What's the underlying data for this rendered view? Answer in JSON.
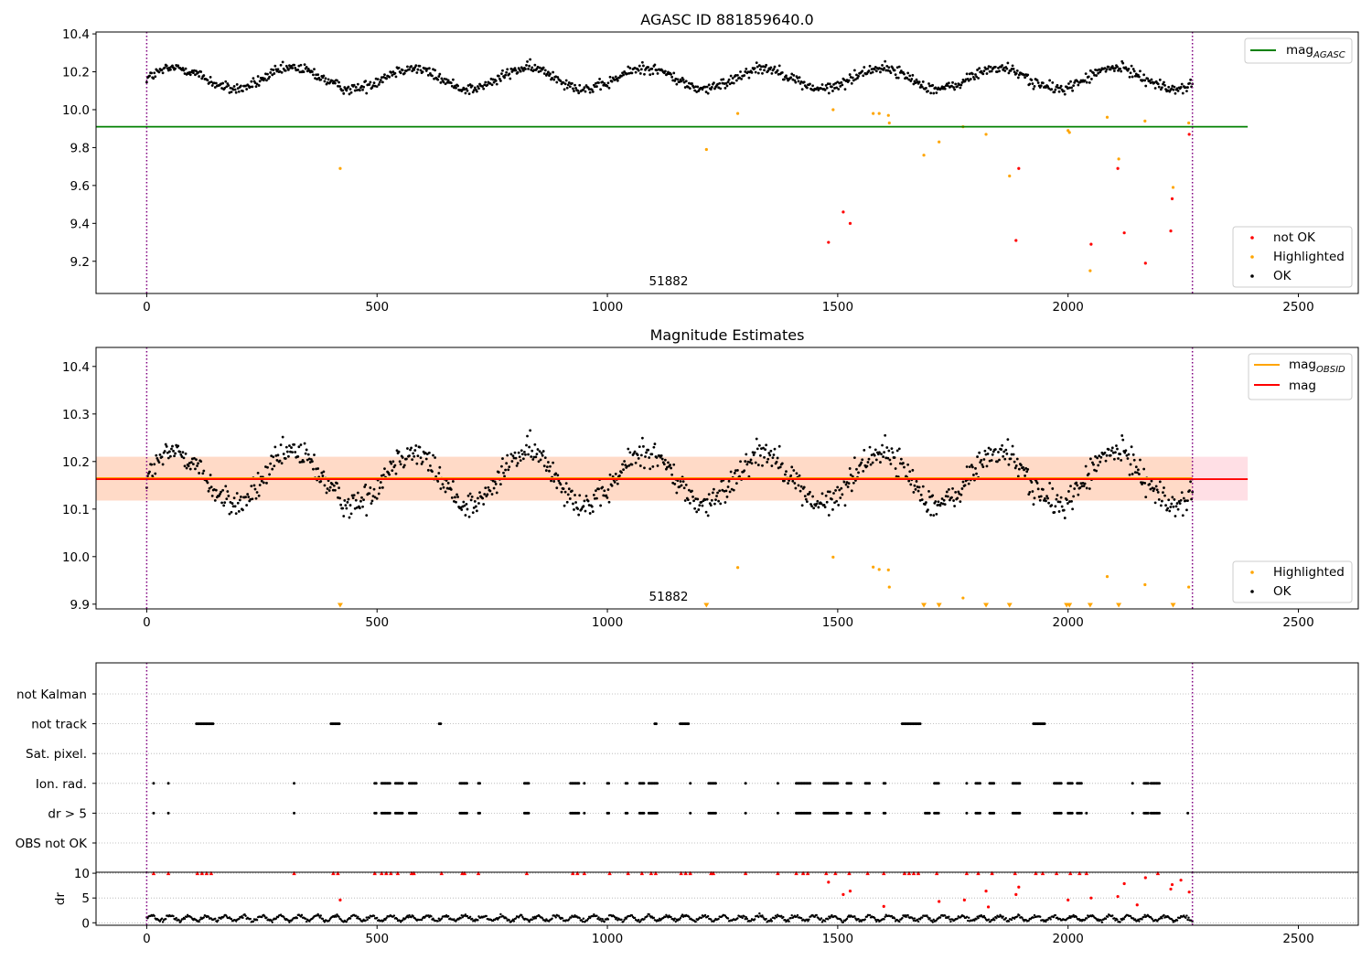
{
  "chart_data": [
    {
      "type": "scatter",
      "title": "AGASC ID 881859640.0",
      "xlim": [
        -110,
        2630
      ],
      "ylim": [
        9.03,
        10.41
      ],
      "xticks": [
        0,
        500,
        1000,
        1500,
        2000,
        2500
      ],
      "yticks": [
        9.2,
        9.4,
        9.6,
        9.8,
        10.0,
        10.2,
        10.4
      ],
      "vlines": [
        0,
        2270
      ],
      "annotation": {
        "text": "51882",
        "x": 1135,
        "y": 9.08
      },
      "hline": {
        "label": "mag",
        "sub": "AGASC",
        "value": 9.91,
        "xrange": [
          -110,
          2390
        ],
        "color": "#008000"
      },
      "legend": {
        "upper": [
          {
            "label": "mag",
            "sub": "AGASC",
            "color": "#008000",
            "kind": "line"
          }
        ],
        "lower": [
          {
            "label": "not OK",
            "color": "#ff0000",
            "kind": "dot"
          },
          {
            "label": "Highlighted",
            "color": "#ffa500",
            "kind": "dot"
          },
          {
            "label": "OK",
            "color": "#000000",
            "kind": "dot"
          }
        ]
      },
      "series": [
        {
          "name": "not OK",
          "color": "#ff0000",
          "x": [
            1480,
            1512,
            1527,
            1887,
            1893,
            2050,
            2108,
            2122,
            2168,
            2223,
            2226,
            2263
          ],
          "y": [
            9.3,
            9.46,
            9.4,
            9.31,
            9.69,
            9.29,
            9.69,
            9.35,
            9.19,
            9.36,
            9.53,
            9.87
          ]
        },
        {
          "name": "Highlighted",
          "color": "#ffa500",
          "x": [
            420,
            1215,
            1283,
            1490,
            1577,
            1590,
            1610,
            1612,
            1687,
            1720,
            1772,
            1822,
            1873,
            2000,
            2003,
            2048,
            2085,
            2110,
            2167,
            2228,
            2262
          ],
          "y": [
            9.69,
            9.79,
            9.98,
            10.0,
            9.98,
            9.98,
            9.97,
            9.93,
            9.76,
            9.83,
            9.91,
            9.87,
            9.65,
            9.89,
            9.88,
            9.15,
            9.96,
            9.74,
            9.94,
            9.59,
            9.93
          ]
        }
      ],
      "ok_series": {
        "name": "OK",
        "color": "#000000",
        "x_start": 0,
        "x_end": 2270,
        "count": 1100,
        "base": 10.165,
        "amplitude": 0.055,
        "period": 255,
        "phase": 0,
        "noise": 0.03
      }
    },
    {
      "type": "scatter",
      "title": "Magnitude Estimates",
      "xlim": [
        -110,
        2630
      ],
      "ylim": [
        9.89,
        10.44
      ],
      "xticks": [
        0,
        500,
        1000,
        1500,
        2000,
        2500
      ],
      "yticks": [
        9.9,
        10.0,
        10.1,
        10.2,
        10.3,
        10.4
      ],
      "vlines": [
        0,
        2270
      ],
      "annotation": {
        "text": "51882",
        "x": 1135,
        "y": 9.915
      },
      "band_outer": {
        "range": [
          10.118,
          10.21
        ],
        "xrange": [
          -110,
          2390
        ],
        "color": "#ffc0cb"
      },
      "band_inner": {
        "range": [
          10.118,
          10.21
        ],
        "xrange": [
          -110,
          2270
        ],
        "color": "#ffd7b3"
      },
      "mag_obsid": {
        "label": "mag",
        "sub": "OBSID",
        "value": 10.165,
        "xrange": [
          -110,
          2270
        ],
        "color": "#ffa500"
      },
      "mag": {
        "label": "mag",
        "value": 10.163,
        "xrange": [
          -110,
          2390
        ],
        "color": "#ff0000"
      },
      "legend": {
        "upper": [
          {
            "label": "mag",
            "sub": "OBSID",
            "color": "#ffa500",
            "kind": "line"
          },
          {
            "label": "mag",
            "color": "#ff0000",
            "kind": "line"
          }
        ],
        "lower": [
          {
            "label": "Highlighted",
            "color": "#ffa500",
            "kind": "dot"
          },
          {
            "label": "OK",
            "color": "#000000",
            "kind": "dot"
          }
        ]
      },
      "series": [
        {
          "name": "Highlighted",
          "color": "#ffa500",
          "x": [
            1283,
            1490,
            1577,
            1590,
            1610,
            1612,
            1772,
            2085,
            2167,
            2262
          ],
          "y": [
            9.977,
            9.999,
            9.978,
            9.973,
            9.972,
            9.936,
            9.913,
            9.958,
            9.941,
            9.936
          ]
        },
        {
          "name": "Highlighted (off-scale)",
          "color": "#ffa500",
          "marker": "triangle-down",
          "x": [
            420,
            1215,
            1687,
            1720,
            1822,
            1873,
            1997,
            2003,
            2048,
            2110,
            2228
          ],
          "y": [
            9.893,
            9.893,
            9.893,
            9.893,
            9.893,
            9.893,
            9.893,
            9.893,
            9.893,
            9.893,
            9.893
          ]
        }
      ],
      "ok_series": {
        "name": "OK",
        "color": "#000000",
        "x_start": 0,
        "x_end": 2270,
        "count": 1100,
        "base": 10.165,
        "amplitude": 0.055,
        "period": 255,
        "phase": 0,
        "noise": 0.03
      }
    },
    {
      "type": "scatter",
      "title": "",
      "xlim": [
        -110,
        2630
      ],
      "categories": [
        "not Kalman",
        "not track",
        "Sat. pixel.",
        "Ion. rad.",
        "dr > 5",
        "OBS not OK"
      ],
      "vlines": [
        0,
        2270
      ],
      "flags": {
        "not track": [
          [
            108,
            145
          ],
          [
            400,
            418
          ],
          [
            635,
            640
          ],
          [
            1103,
            1106
          ],
          [
            1158,
            1176
          ],
          [
            1640,
            1680
          ],
          [
            1925,
            1950
          ]
        ],
        "Ion. rad.": [
          [
            15,
            15
          ],
          [
            47,
            47
          ],
          [
            320,
            320
          ],
          [
            495,
            500
          ],
          [
            510,
            530
          ],
          [
            540,
            555
          ],
          [
            570,
            585
          ],
          [
            680,
            695
          ],
          [
            720,
            725
          ],
          [
            820,
            830
          ],
          [
            920,
            940
          ],
          [
            950,
            952
          ],
          [
            1000,
            1005
          ],
          [
            1040,
            1045
          ],
          [
            1070,
            1080
          ],
          [
            1090,
            1110
          ],
          [
            1180,
            1182
          ],
          [
            1220,
            1235
          ],
          [
            1300,
            1302
          ],
          [
            1370,
            1372
          ],
          [
            1410,
            1440
          ],
          [
            1470,
            1500
          ],
          [
            1520,
            1530
          ],
          [
            1560,
            1570
          ],
          [
            1600,
            1603
          ],
          [
            1710,
            1720
          ],
          [
            1780,
            1782
          ],
          [
            1800,
            1810
          ],
          [
            1830,
            1840
          ],
          [
            1880,
            1895
          ],
          [
            1970,
            1985
          ],
          [
            2000,
            2010
          ],
          [
            2020,
            2030
          ],
          [
            2140,
            2142
          ],
          [
            2165,
            2175
          ],
          [
            2180,
            2200
          ]
        ],
        "dr > 5": [
          [
            15,
            15
          ],
          [
            47,
            47
          ],
          [
            320,
            320
          ],
          [
            495,
            500
          ],
          [
            510,
            530
          ],
          [
            540,
            555
          ],
          [
            570,
            585
          ],
          [
            680,
            695
          ],
          [
            720,
            725
          ],
          [
            820,
            830
          ],
          [
            920,
            940
          ],
          [
            950,
            952
          ],
          [
            1000,
            1005
          ],
          [
            1040,
            1045
          ],
          [
            1070,
            1080
          ],
          [
            1090,
            1110
          ],
          [
            1180,
            1182
          ],
          [
            1220,
            1235
          ],
          [
            1300,
            1302
          ],
          [
            1370,
            1372
          ],
          [
            1410,
            1440
          ],
          [
            1470,
            1500
          ],
          [
            1520,
            1530
          ],
          [
            1560,
            1570
          ],
          [
            1600,
            1603
          ],
          [
            1690,
            1700
          ],
          [
            1710,
            1720
          ],
          [
            1780,
            1782
          ],
          [
            1800,
            1810
          ],
          [
            1830,
            1840
          ],
          [
            1880,
            1895
          ],
          [
            1970,
            1985
          ],
          [
            2000,
            2010
          ],
          [
            2020,
            2030
          ],
          [
            2040,
            2042
          ],
          [
            2140,
            2142
          ],
          [
            2165,
            2175
          ],
          [
            2180,
            2200
          ],
          [
            2260,
            2262
          ]
        ]
      }
    },
    {
      "type": "scatter",
      "title": "",
      "ylabel": "dr",
      "xlim": [
        -110,
        2630
      ],
      "ylim": [
        -0.5,
        10.2
      ],
      "xticks": [
        0,
        500,
        1000,
        1500,
        2000,
        2500
      ],
      "yticks": [
        0,
        5,
        10
      ],
      "vlines": [
        0,
        2270
      ],
      "clip_value": 10,
      "ok_series": {
        "name": "OK",
        "color": "#000000",
        "x_start": 0,
        "x_end": 2270,
        "count": 1100,
        "base": 0.9,
        "amplitude": 0.5,
        "period": 40,
        "phase": 0,
        "noise": 0.35
      },
      "series": [
        {
          "name": "not OK",
          "color": "#ff0000",
          "marker": "triangle-up-clipped",
          "x": [
            15,
            47,
            110,
            120,
            130,
            140,
            320,
            405,
            415,
            495,
            510,
            520,
            530,
            545,
            575,
            580,
            640,
            685,
            690,
            720,
            825,
            925,
            935,
            950,
            1005,
            1045,
            1075,
            1095,
            1105,
            1160,
            1170,
            1180,
            1225,
            1230,
            1300,
            1370,
            1410,
            1425,
            1435,
            1475,
            1495,
            1525,
            1565,
            1600,
            1645,
            1655,
            1665,
            1675,
            1715,
            1780,
            1805,
            1835,
            1885,
            1930,
            1945,
            1975,
            2005,
            2025,
            2040,
            2195
          ],
          "y": [
            10,
            10,
            10,
            10,
            10,
            10,
            10,
            10,
            10,
            10,
            10,
            10,
            10,
            10,
            10,
            10,
            10,
            10,
            10,
            10,
            10,
            10,
            10,
            10,
            10,
            10,
            10,
            10,
            10,
            10,
            10,
            10,
            10,
            10,
            10,
            10,
            10,
            10,
            10,
            10,
            10,
            10,
            10,
            10,
            10,
            10,
            10,
            10,
            10,
            10,
            10,
            10,
            10,
            10,
            10,
            10,
            10,
            10,
            10,
            10
          ]
        },
        {
          "name": "not OK",
          "color": "#ff0000",
          "x": [
            420,
            1480,
            1512,
            1527,
            1600,
            1720,
            1775,
            1822,
            1827,
            1887,
            1893,
            2000,
            2050,
            2108,
            2122,
            2150,
            2168,
            2223,
            2226,
            2245,
            2263
          ],
          "y": [
            4.6,
            8.2,
            5.7,
            6.4,
            3.3,
            4.3,
            4.6,
            6.4,
            3.2,
            5.7,
            7.2,
            4.6,
            5.0,
            5.3,
            7.9,
            3.6,
            9.1,
            6.8,
            7.7,
            8.6,
            6.2
          ]
        }
      ]
    }
  ]
}
